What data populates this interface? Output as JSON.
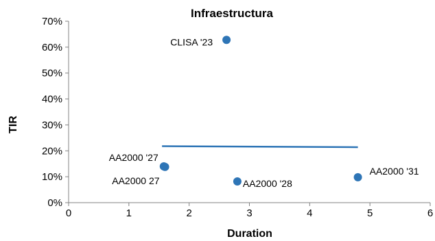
{
  "chart_data": {
    "type": "scatter",
    "title": "Infraestructura",
    "xlabel": "Duration",
    "ylabel": "TIR",
    "xlim": [
      0,
      6
    ],
    "ylim": [
      0,
      70
    ],
    "x_ticks": [
      "0",
      "1",
      "2",
      "3",
      "4",
      "5",
      "6"
    ],
    "y_ticks": [
      "0%",
      "10%",
      "20%",
      "30%",
      "40%",
      "50%",
      "60%",
      "70%"
    ],
    "grid": false,
    "legend": false,
    "marker_color": "#2e75b6",
    "trend_color": "#2e75b6",
    "points": [
      {
        "label": "CLISA '23",
        "x": 2.62,
        "y": 62.8
      },
      {
        "label": "AA2000 '27",
        "x": 1.58,
        "y": 14.0
      },
      {
        "label": "AA2000 27",
        "x": 1.6,
        "y": 13.8
      },
      {
        "label": "AA2000 '28",
        "x": 2.8,
        "y": 8.2
      },
      {
        "label": "AA2000 '31",
        "x": 4.8,
        "y": 9.8
      }
    ],
    "trend": {
      "x": [
        1.55,
        4.8
      ],
      "y": [
        21.8,
        21.4
      ]
    }
  }
}
